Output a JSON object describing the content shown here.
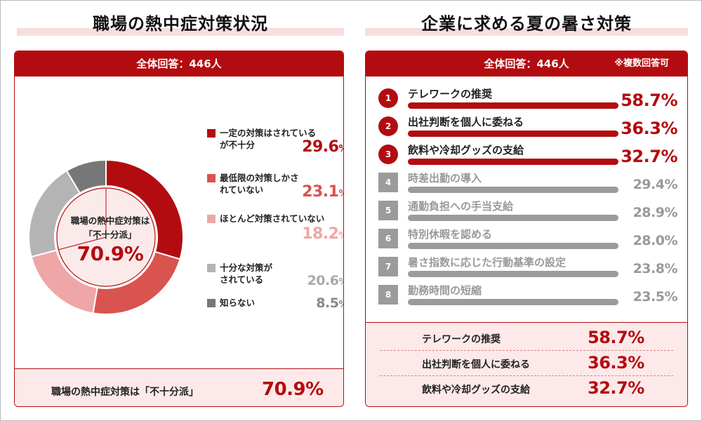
{
  "left": {
    "title": "職場の熱中症対策状況",
    "header": "全体回答：446人",
    "center_line1": "職場の熱中症対策は",
    "center_line2": "「不十分派」",
    "center_value": "70.9%",
    "footer_label": "職場の熱中症対策は「不十分派」",
    "footer_value": "70.9%"
  },
  "right": {
    "title": "企業に求める夏の暑さ対策",
    "header": "全体回答：446人",
    "note": "※複数回答可",
    "footer": [
      {
        "label": "テレワークの推奨",
        "value": "58.7%"
      },
      {
        "label": "出社判断を個人に委ねる",
        "value": "36.3%"
      },
      {
        "label": "飲料や冷却グッズの支給",
        "value": "32.7%"
      }
    ]
  },
  "colors": {
    "dark_red": "#b30c10",
    "red": "#d9534f",
    "pink": "#efa6a6",
    "light_gray": "#b4b4b4",
    "dark_gray": "#777777",
    "bar_gray": "#9b9b9b"
  },
  "chart_data": [
    {
      "type": "pie",
      "title": "職場の熱中症対策状況",
      "slices": [
        {
          "label": "一定の対策はされているが不十分",
          "value": 29.6,
          "value_text": "29.6",
          "color": "#b30c10"
        },
        {
          "label": "最低限の対策しかされていない",
          "value": 23.1,
          "value_text": "23.1",
          "color": "#d9534f"
        },
        {
          "label": "ほとんど対策されていない",
          "value": 18.2,
          "value_text": "18.2",
          "color": "#efa6a6"
        },
        {
          "label": "十分な対策がされている",
          "value": 20.6,
          "value_text": "20.6",
          "color": "#b4b4b4"
        },
        {
          "label": "知らない",
          "value": 8.5,
          "value_text": "8.5",
          "color": "#777777"
        }
      ],
      "unit": "%"
    },
    {
      "type": "bar",
      "title": "企業に求める夏の暑さ対策",
      "categories": [
        "テレワークの推奨",
        "出社判断を個人に委ねる",
        "飲料や冷却グッズの支給",
        "時差出勤の導入",
        "通勤負担への手当支給",
        "特別休暇を認める",
        "暑さ指数に応じた行動基準の設定",
        "勤務時間の短縮"
      ],
      "ranks": [
        "1",
        "2",
        "3",
        "4",
        "5",
        "6",
        "7",
        "8"
      ],
      "values": [
        58.7,
        36.3,
        32.7,
        29.4,
        28.9,
        28.0,
        23.8,
        23.5
      ],
      "value_labels": [
        "58.7%",
        "36.3%",
        "32.7%",
        "29.4%",
        "28.9%",
        "28.0%",
        "23.8%",
        "23.5%"
      ]
    }
  ]
}
